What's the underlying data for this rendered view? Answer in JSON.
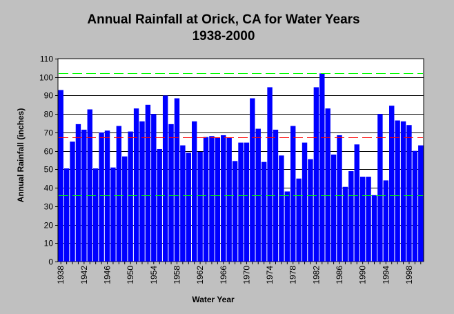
{
  "chart_data": {
    "type": "bar",
    "title": "Annual Rainfall at Orick, CA for Water Years",
    "subtitle": "1938-2000",
    "xlabel": "Water Year",
    "ylabel": "Annual Rainfall (inches)",
    "ylim": [
      0,
      110
    ],
    "yticks": [
      0,
      10,
      20,
      30,
      40,
      50,
      60,
      70,
      80,
      90,
      100,
      110
    ],
    "grid": true,
    "x": [
      1938,
      1939,
      1940,
      1941,
      1942,
      1943,
      1944,
      1945,
      1946,
      1947,
      1948,
      1949,
      1950,
      1951,
      1952,
      1953,
      1954,
      1955,
      1956,
      1957,
      1958,
      1959,
      1960,
      1961,
      1962,
      1963,
      1964,
      1965,
      1966,
      1967,
      1968,
      1969,
      1970,
      1971,
      1972,
      1973,
      1974,
      1975,
      1976,
      1977,
      1978,
      1979,
      1980,
      1981,
      1982,
      1983,
      1984,
      1985,
      1986,
      1987,
      1988,
      1989,
      1990,
      1991,
      1992,
      1993,
      1994,
      1995,
      1996,
      1997,
      1998,
      1999,
      2000
    ],
    "xtick_labels": [
      "1938",
      "1942",
      "1946",
      "1950",
      "1954",
      "1958",
      "1962",
      "1966",
      "1970",
      "1974",
      "1978",
      "1982",
      "1986",
      "1990",
      "1994",
      "1998"
    ],
    "values": [
      93,
      50.5,
      65,
      74.5,
      71.5,
      82.5,
      50.5,
      70,
      71,
      51,
      73.5,
      57,
      70.5,
      83,
      76,
      85,
      80,
      61,
      90,
      74.5,
      88.5,
      63,
      59,
      76,
      59.5,
      67.5,
      68,
      67,
      68.5,
      67,
      54.5,
      64.5,
      64.5,
      88.5,
      72,
      54,
      94.5,
      71.5,
      57.5,
      38,
      73.5,
      45,
      64.5,
      55.5,
      94.5,
      102,
      83,
      58,
      68.5,
      40.5,
      49,
      63.5,
      46,
      46,
      36,
      80,
      44,
      84.5,
      76.5,
      76,
      74,
      60,
      63
    ],
    "bar_color": "#0000ff",
    "reference_lines": [
      {
        "value": 102,
        "color": "#00ff00",
        "style": "dashed"
      },
      {
        "value": 67.5,
        "color": "#ff0000",
        "style": "dashed"
      },
      {
        "value": 36,
        "color": "#00ff00",
        "style": "dashed"
      }
    ]
  }
}
